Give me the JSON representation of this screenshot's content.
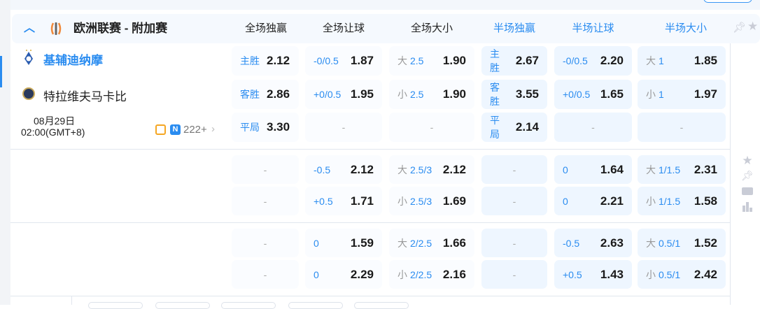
{
  "league": {
    "name": "欧洲联赛 - 附加赛",
    "icon": "europa-league-trophy-icon"
  },
  "columns": [
    {
      "label": "全场独赢",
      "half": false
    },
    {
      "label": "全场让球",
      "half": false
    },
    {
      "label": "全场大小",
      "half": false
    },
    {
      "label": "半场独赢",
      "half": true
    },
    {
      "label": "半场让球",
      "half": true
    },
    {
      "label": "半场大小",
      "half": true
    }
  ],
  "match": {
    "home": "基辅迪纳摩",
    "away": "特拉维夫马卡比",
    "date": "08月29日",
    "time": "02:00(GMT+8)",
    "neutral_badge": "N",
    "more_markets": "222+"
  },
  "colors": {
    "accent": "#2a8cf0",
    "half_bg": "#eef6ff",
    "full_bg": "#fafcff"
  },
  "groups": [
    {
      "rows": [
        [
          {
            "l": "主胜",
            "o": "2.12"
          },
          {
            "h": "-0/0.5",
            "o": "1.87"
          },
          {
            "g": "大",
            "h": "2.5",
            "o": "1.90"
          },
          {
            "l": "主胜",
            "o": "2.67"
          },
          {
            "h": "-0/0.5",
            "o": "2.20"
          },
          {
            "g": "大",
            "h": "1",
            "o": "1.85"
          }
        ],
        [
          {
            "l": "客胜",
            "o": "2.86"
          },
          {
            "h": "+0/0.5",
            "o": "1.95"
          },
          {
            "g": "小",
            "h": "2.5",
            "o": "1.90"
          },
          {
            "l": "客胜",
            "o": "3.55"
          },
          {
            "h": "+0/0.5",
            "o": "1.65"
          },
          {
            "g": "小",
            "h": "1",
            "o": "1.97"
          }
        ],
        [
          {
            "l": "平局",
            "o": "3.30"
          },
          {
            "d": "-"
          },
          {
            "d": "-"
          },
          {
            "l": "平局",
            "o": "2.14"
          },
          {
            "d": "-"
          },
          {
            "d": "-"
          }
        ]
      ]
    },
    {
      "rows": [
        [
          {
            "d": "-"
          },
          {
            "h": "-0.5",
            "o": "2.12"
          },
          {
            "g": "大",
            "h": "2.5/3",
            "o": "2.12"
          },
          {
            "d": "-"
          },
          {
            "h": "0",
            "o": "1.64"
          },
          {
            "g": "大",
            "h": "1/1.5",
            "o": "2.31"
          }
        ],
        [
          {
            "d": "-"
          },
          {
            "h": "+0.5",
            "o": "1.71"
          },
          {
            "g": "小",
            "h": "2.5/3",
            "o": "1.69"
          },
          {
            "d": "-"
          },
          {
            "h": "0",
            "o": "2.21"
          },
          {
            "g": "小",
            "h": "1/1.5",
            "o": "1.58"
          }
        ]
      ]
    },
    {
      "rows": [
        [
          {
            "d": "-"
          },
          {
            "h": "0",
            "o": "1.59"
          },
          {
            "g": "大",
            "h": "2/2.5",
            "o": "1.66"
          },
          {
            "d": "-"
          },
          {
            "h": "-0.5",
            "o": "2.63"
          },
          {
            "g": "大",
            "h": "0.5/1",
            "o": "1.52"
          }
        ],
        [
          {
            "d": "-"
          },
          {
            "h": "0",
            "o": "2.29"
          },
          {
            "g": "小",
            "h": "2/2.5",
            "o": "2.16"
          },
          {
            "d": "-"
          },
          {
            "h": "+0.5",
            "o": "1.43"
          },
          {
            "g": "小",
            "h": "0.5/1",
            "o": "2.42"
          }
        ]
      ]
    }
  ]
}
